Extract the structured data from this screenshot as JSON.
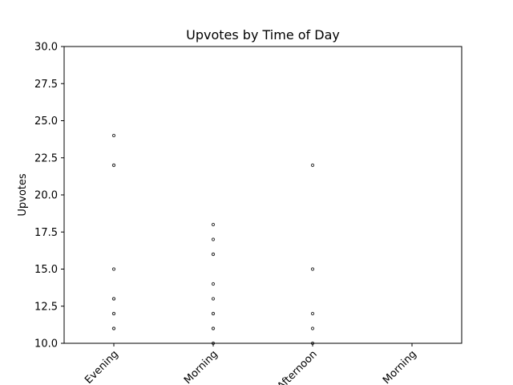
{
  "chart_data": {
    "type": "scatter",
    "title": "Upvotes by Time of Day",
    "xlabel": "",
    "ylabel": "Upvotes",
    "categories": [
      "Evening",
      "Morning",
      "Afternoon",
      "Morning"
    ],
    "ylim": [
      10,
      30
    ],
    "yticks": [
      "10.0",
      "12.5",
      "15.0",
      "17.5",
      "20.0",
      "22.5",
      "25.0",
      "27.5",
      "30.0"
    ],
    "xtick_rotation_deg": 45,
    "grid": false,
    "legend": "none",
    "marker_style": "hollow-circle",
    "marker_color": "#333333",
    "series": [
      {
        "points": [
          {
            "category_index": 0,
            "y": 24
          },
          {
            "category_index": 0,
            "y": 22
          },
          {
            "category_index": 0,
            "y": 22
          },
          {
            "category_index": 0,
            "y": 15
          },
          {
            "category_index": 0,
            "y": 13
          },
          {
            "category_index": 0,
            "y": 13
          },
          {
            "category_index": 0,
            "y": 12
          },
          {
            "category_index": 0,
            "y": 12
          },
          {
            "category_index": 0,
            "y": 11
          },
          {
            "category_index": 0,
            "y": 11
          },
          {
            "category_index": 1,
            "y": 18
          },
          {
            "category_index": 1,
            "y": 17
          },
          {
            "category_index": 1,
            "y": 16
          },
          {
            "category_index": 1,
            "y": 16
          },
          {
            "category_index": 1,
            "y": 14
          },
          {
            "category_index": 1,
            "y": 13
          },
          {
            "category_index": 1,
            "y": 12
          },
          {
            "category_index": 1,
            "y": 12
          },
          {
            "category_index": 1,
            "y": 11
          },
          {
            "category_index": 1,
            "y": 11
          },
          {
            "category_index": 1,
            "y": 10
          },
          {
            "category_index": 2,
            "y": 22
          },
          {
            "category_index": 2,
            "y": 15
          },
          {
            "category_index": 2,
            "y": 12
          },
          {
            "category_index": 2,
            "y": 11
          },
          {
            "category_index": 2,
            "y": 10
          }
        ]
      }
    ]
  }
}
